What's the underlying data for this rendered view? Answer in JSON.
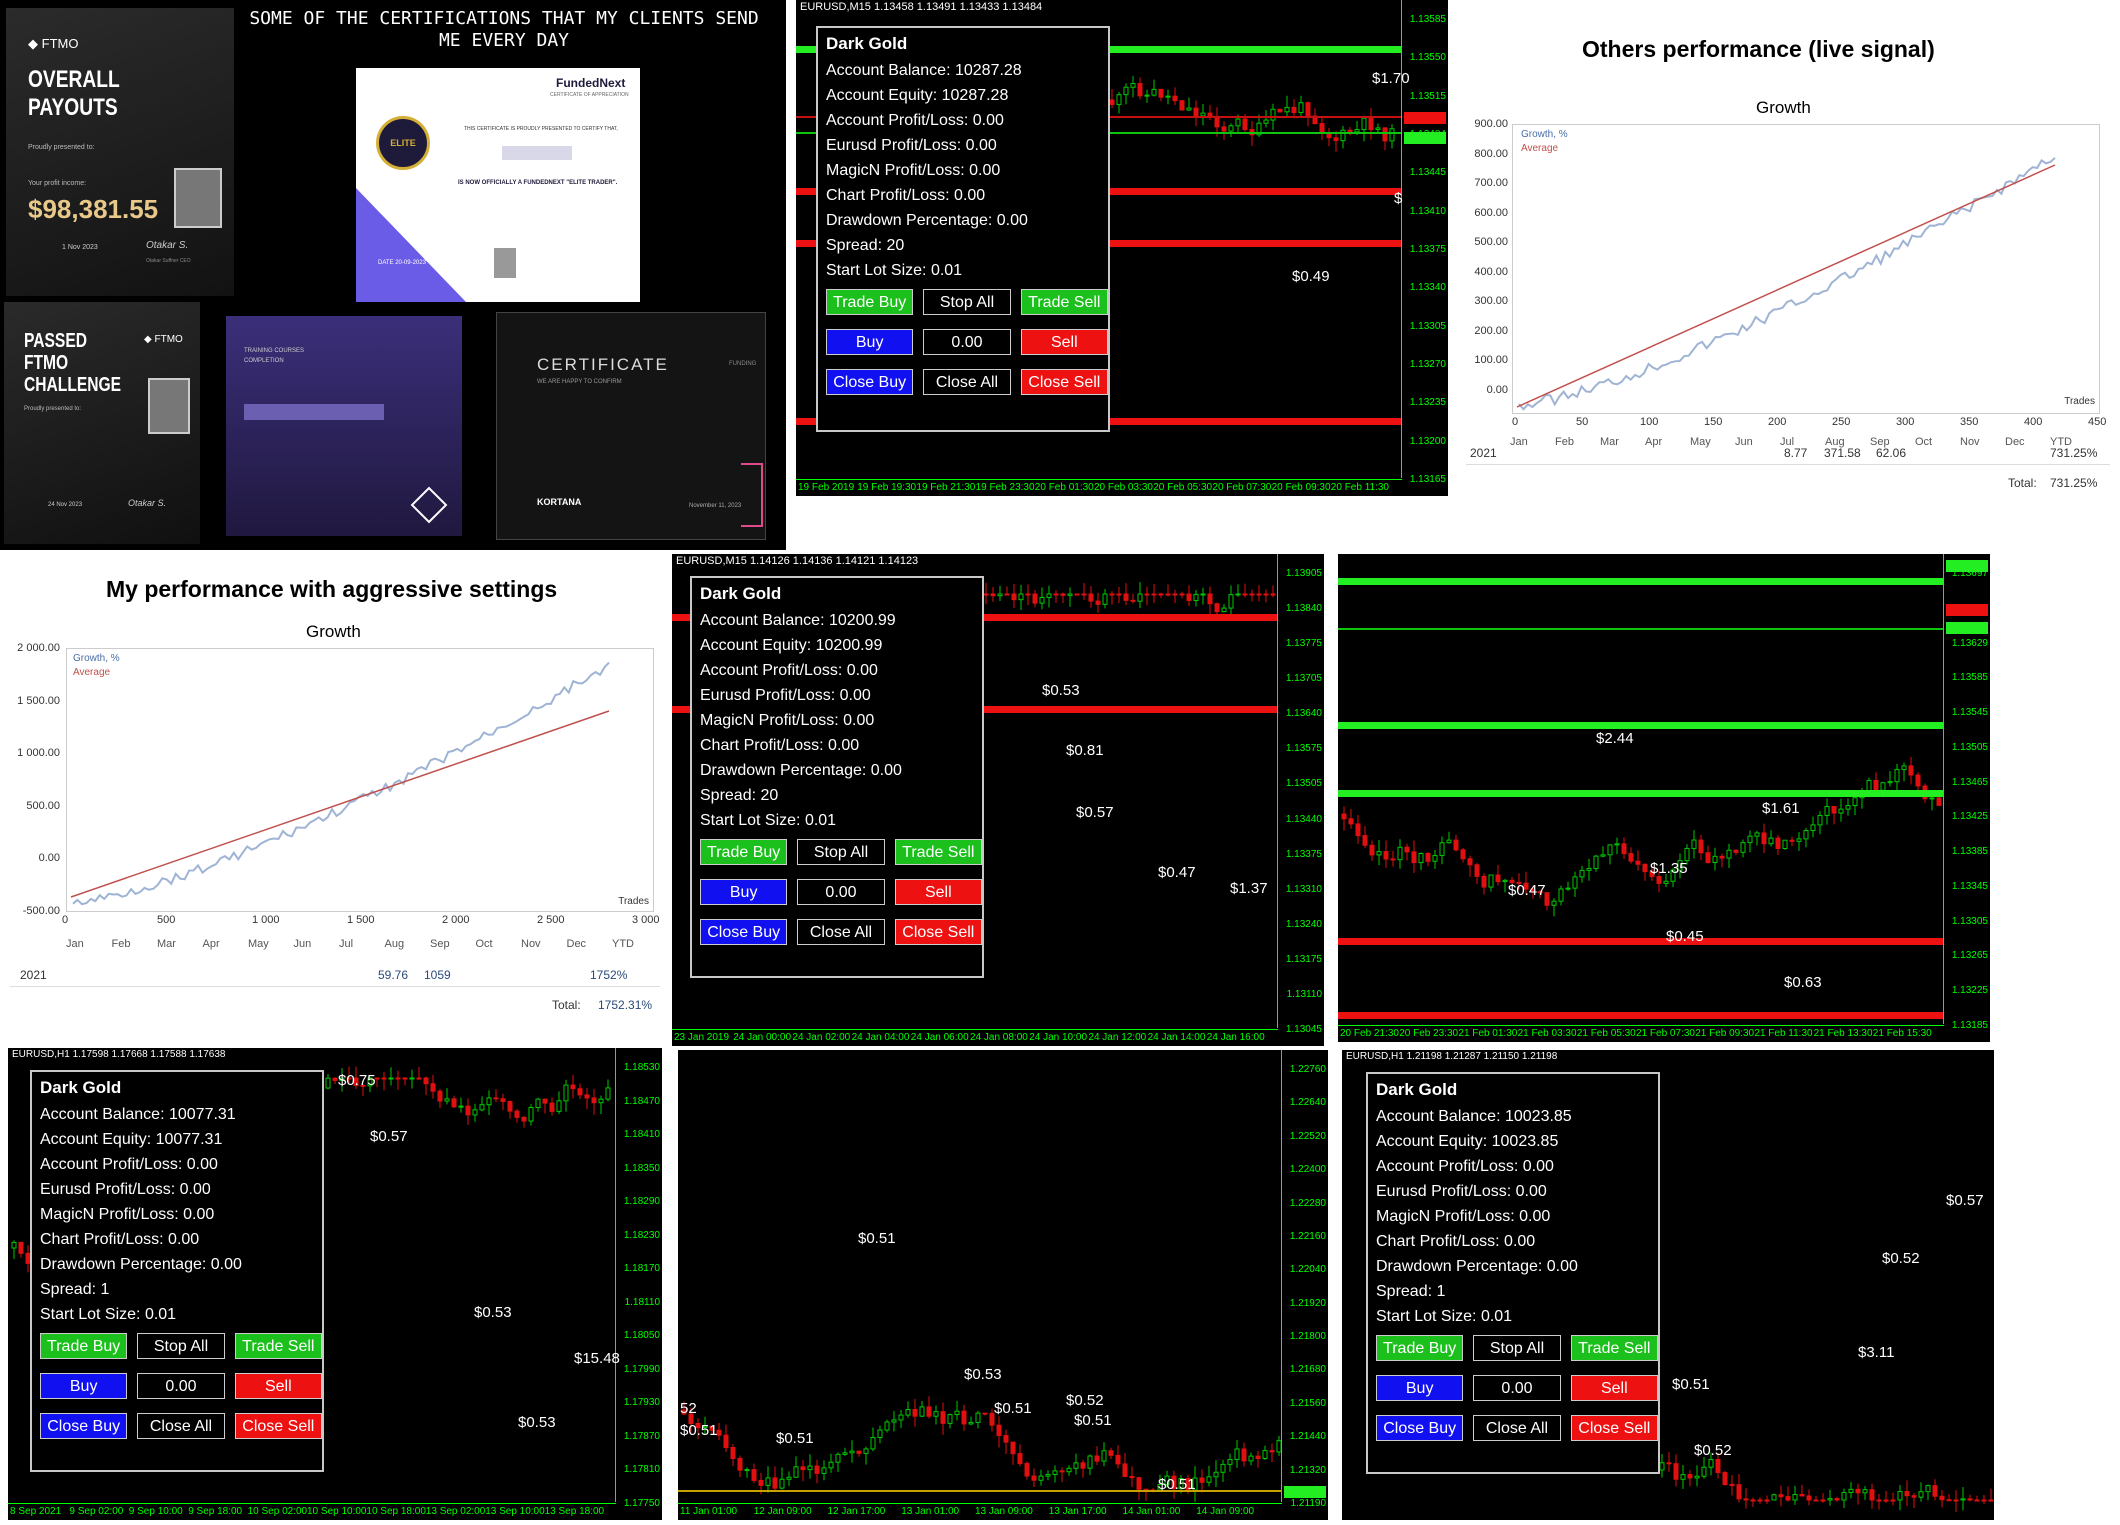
{
  "collage": {
    "certs": {
      "heading": "SOME OF THE CERTIFICATIONS THAT MY CLIENTS SEND ME EVERY DAY",
      "ftmo_brand": "FTMO",
      "payout_title": "OVERALL PAYOUTS",
      "payout_presented": "Proudly presented to:",
      "payout_profit_label": "Your profit income:",
      "payout_amount": "$98,381.55",
      "payout_date": "1 Nov 2023",
      "payout_signature": "Otakar S.",
      "payout_sig_role": "Otakar Suffner CEO",
      "fundednext_brand": "FundedNext",
      "fundednext_sub": "CERTIFICATE OF APPRECIATION",
      "fundednext_badge": "ELITE",
      "fundednext_line1": "THIS CERTIFICATE IS PROUDLY PRESENTED TO CERTIFY THAT,",
      "fundednext_line2": "IS NOW OFFICIALLY A FUNDEDNEXT \"ELITE TRADER\".",
      "fundednext_date": "DATE 20-09-2023",
      "passed_title_1": "PASSED",
      "passed_title_2": "FTMO CHALLENGE",
      "passed_presented": "Proudly presented to:",
      "passed_date": "24 Nov 2023",
      "passed_signature": "Otakar S.",
      "training_line1": "TRAINING COURSES",
      "training_line2": "COMPLETION",
      "certificate_title": "CERTIFICATE",
      "certificate_sub": "WE ARE HAPPY TO CONFIRM",
      "certificate_funding": "FUNDING",
      "kortana": "KORTANA",
      "kortana_date": "November 11, 2023"
    },
    "chart1": {
      "title": "EURUSD,M15  1.13458 1.13491 1.13433 1.13484",
      "y_ticks": [
        "1.13585",
        "1.13550",
        "1.13515",
        "1.13484",
        "1.13445",
        "1.13410",
        "1.13375",
        "1.13340",
        "1.13305",
        "1.13270",
        "1.13235",
        "1.13200",
        "1.13165"
      ],
      "x_ticks": [
        "19 Feb 2019",
        "19 Feb 19:30",
        "19 Feb 21:30",
        "19 Feb 23:30",
        "20 Feb 01:30",
        "20 Feb 03:30",
        "20 Feb 05:30",
        "20 Feb 07:30",
        "20 Feb 09:30",
        "20 Feb 11:30"
      ],
      "labels": [
        "$1.70",
        "$0.49",
        "$"
      ],
      "panel": {
        "name": "Dark Gold",
        "balance": "Account Balance: 10287.28",
        "equity": "Account Equity: 10287.28",
        "profit": "Account Profit/Loss: 0.00",
        "eurusd": "Eurusd Profit/Loss: 0.00",
        "magic": "MagicN Profit/Loss: 0.00",
        "chartpl": "Chart Profit/Loss: 0.00",
        "drawdown": "Drawdown Percentage: 0.00",
        "spread": "Spread: 20",
        "lot": "Start Lot Size: 0.01",
        "trade_buy": "Trade Buy",
        "stop_all": "Stop All",
        "trade_sell": "Trade Sell",
        "buy": "Buy",
        "lot_value": "0.00",
        "sell": "Sell",
        "close_buy": "Close Buy",
        "close_all": "Close All",
        "close_sell": "Close Sell"
      }
    },
    "others": {
      "heading": "Others performance (live signal)",
      "chart_title": "Growth",
      "legend_growth": "Growth, %",
      "legend_avg": "Average",
      "trades_label": "Trades",
      "y_ticks": [
        "900.00",
        "800.00",
        "700.00",
        "600.00",
        "500.00",
        "400.00",
        "300.00",
        "200.00",
        "100.00",
        "0.00"
      ],
      "x_ticks": [
        "0",
        "50",
        "100",
        "150",
        "200",
        "250",
        "300",
        "350",
        "400",
        "450"
      ],
      "months": [
        "Jan",
        "Feb",
        "Mar",
        "Apr",
        "May",
        "Jun",
        "Jul",
        "Aug",
        "Sep",
        "Oct",
        "Nov",
        "Dec",
        "YTD"
      ],
      "year": "2021",
      "jul": "8.77",
      "aug": "371.58",
      "sep": "62.06",
      "ytd": "731.25%",
      "total_label": "Total:",
      "total": "731.25%"
    },
    "mine": {
      "heading": "My performance with aggressive settings",
      "chart_title": "Growth",
      "legend_growth": "Growth, %",
      "legend_avg": "Average",
      "trades_label": "Trades",
      "y_ticks": [
        "2 000.00",
        "1 500.00",
        "1 000.00",
        "500.00",
        "0.00",
        "-500.00"
      ],
      "x_ticks": [
        "0",
        "500",
        "1 000",
        "1 500",
        "2 000",
        "2 500",
        "3 000"
      ],
      "months": [
        "Jan",
        "Feb",
        "Mar",
        "Apr",
        "May",
        "Jun",
        "Jul",
        "Aug",
        "Sep",
        "Oct",
        "Nov",
        "Dec",
        "YTD"
      ],
      "year": "2021",
      "aug": "59.76",
      "sep": "1059",
      "ytd": "1752%",
      "total_label": "Total:",
      "total": "1752.31%"
    },
    "chart2": {
      "title": "EURUSD,M15  1.14126 1.14136 1.14121 1.14123",
      "y_ticks": [
        "1.13905",
        "1.13840",
        "1.13775",
        "1.13705",
        "1.13640",
        "1.13575",
        "1.13505",
        "1.13440",
        "1.13375",
        "1.13310",
        "1.13240",
        "1.13175",
        "1.13110",
        "1.13045"
      ],
      "x_ticks": [
        "23 Jan 2019",
        "24 Jan 00:00",
        "24 Jan 02:00",
        "24 Jan 04:00",
        "24 Jan 06:00",
        "24 Jan 08:00",
        "24 Jan 10:00",
        "24 Jan 12:00",
        "24 Jan 14:00",
        "24 Jan 16:00"
      ],
      "labels": [
        "$0.53",
        "$0.81",
        "$0.57",
        "$0.47",
        "$1.37"
      ],
      "panel": {
        "name": "Dark Gold",
        "balance": "Account Balance: 10200.99",
        "equity": "Account Equity: 10200.99",
        "profit": "Account Profit/Loss: 0.00",
        "eurusd": "Eurusd Profit/Loss: 0.00",
        "magic": "MagicN Profit/Loss: 0.00",
        "chartpl": "Chart Profit/Loss: 0.00",
        "drawdown": "Drawdown Percentage: 0.00",
        "spread": "Spread: 20",
        "lot": "Start Lot Size: 0.01",
        "trade_buy": "Trade Buy",
        "stop_all": "Stop All",
        "trade_sell": "Trade Sell",
        "buy": "Buy",
        "lot_value": "0.00",
        "sell": "Sell",
        "close_buy": "Close Buy",
        "close_all": "Close All",
        "close_sell": "Close Sell"
      }
    },
    "chart3": {
      "y_ticks": [
        "1.13697",
        "1.13665",
        "1.13629",
        "1.13585",
        "1.13545",
        "1.13505",
        "1.13465",
        "1.13425",
        "1.13385",
        "1.13345",
        "1.13305",
        "1.13265",
        "1.13225",
        "1.13185"
      ],
      "x_ticks": [
        "20 Feb 21:30",
        "20 Feb 23:30",
        "21 Feb 01:30",
        "21 Feb 03:30",
        "21 Feb 05:30",
        "21 Feb 07:30",
        "21 Feb 09:30",
        "21 Feb 11:30",
        "21 Feb 13:30",
        "21 Feb 15:30"
      ],
      "labels": [
        "$2.44",
        "$1.61",
        "$0.47",
        "$1.35",
        "$0.45",
        "$0.63"
      ]
    },
    "chart4": {
      "title": "EURUSD,H1  1.17598 1.17668 1.17588 1.17638",
      "y_ticks": [
        "1.18530",
        "1.18470",
        "1.18410",
        "1.18350",
        "1.18290",
        "1.18230",
        "1.18170",
        "1.18110",
        "1.18050",
        "1.17990",
        "1.17930",
        "1.17870",
        "1.17810",
        "1.17750"
      ],
      "x_ticks": [
        "8 Sep 2021",
        "9 Sep 02:00",
        "9 Sep 10:00",
        "9 Sep 18:00",
        "10 Sep 02:00",
        "10 Sep 10:00",
        "10 Sep 18:00",
        "13 Sep 02:00",
        "13 Sep 10:00",
        "13 Sep 18:00"
      ],
      "labels": [
        "$0.75",
        "$0.57",
        "$0.53",
        "$15.48",
        "$0.53"
      ],
      "panel": {
        "name": "Dark Gold",
        "balance": "Account Balance: 10077.31",
        "equity": "Account Equity: 10077.31",
        "profit": "Account Profit/Loss: 0.00",
        "eurusd": "Eurusd Profit/Loss: 0.00",
        "magic": "MagicN Profit/Loss: 0.00",
        "chartpl": "Chart Profit/Loss: 0.00",
        "drawdown": "Drawdown Percentage: 0.00",
        "spread": "Spread: 1",
        "lot": "Start Lot Size: 0.01",
        "trade_buy": "Trade Buy",
        "stop_all": "Stop All",
        "trade_sell": "Trade Sell",
        "buy": "Buy",
        "lot_value": "0.00",
        "sell": "Sell",
        "close_buy": "Close Buy",
        "close_all": "Close All",
        "close_sell": "Close Sell"
      }
    },
    "chart5": {
      "y_ticks": [
        "1.22760",
        "1.22640",
        "1.22520",
        "1.22400",
        "1.22280",
        "1.22160",
        "1.22040",
        "1.21920",
        "1.21800",
        "1.21680",
        "1.21560",
        "1.21440",
        "1.21320",
        "1.21190"
      ],
      "x_ticks": [
        "11 Jan 01:00",
        "12 Jan 09:00",
        "12 Jan 17:00",
        "13 Jan 01:00",
        "13 Jan 09:00",
        "13 Jan 17:00",
        "14 Jan 01:00",
        "14 Jan 09:00"
      ],
      "labels": [
        "$0.51",
        "$0.51",
        "$0.51",
        "$0.53",
        "$0.51",
        "$0.52",
        "$0.51",
        "$0.51",
        "52"
      ]
    },
    "chart6": {
      "title": "EURUSD,H1  1.21198 1.21287 1.21150 1.21198",
      "labels": [
        "$0.57",
        "$0.52",
        "$3.11",
        "$0.51",
        "$0.52"
      ],
      "panel": {
        "name": "Dark Gold",
        "balance": "Account Balance: 10023.85",
        "equity": "Account Equity: 10023.85",
        "profit": "Account Profit/Loss: 0.00",
        "eurusd": "Eurusd Profit/Loss: 0.00",
        "magic": "MagicN Profit/Loss: 0.00",
        "chartpl": "Chart Profit/Loss: 0.00",
        "drawdown": "Drawdown Percentage: 0.00",
        "spread": "Spread: 1",
        "lot": "Start Lot Size: 0.01",
        "trade_buy": "Trade Buy",
        "stop_all": "Stop All",
        "trade_sell": "Trade Sell",
        "buy": "Buy",
        "lot_value": "0.00",
        "sell": "Sell",
        "close_buy": "Close Buy",
        "close_all": "Close All",
        "close_sell": "Close Sell"
      }
    }
  },
  "colors": {
    "bull": "#00c800",
    "bear": "#e01010",
    "axis": "#00ff00",
    "growth": "#9fb4d4",
    "average": "#c0504d"
  }
}
